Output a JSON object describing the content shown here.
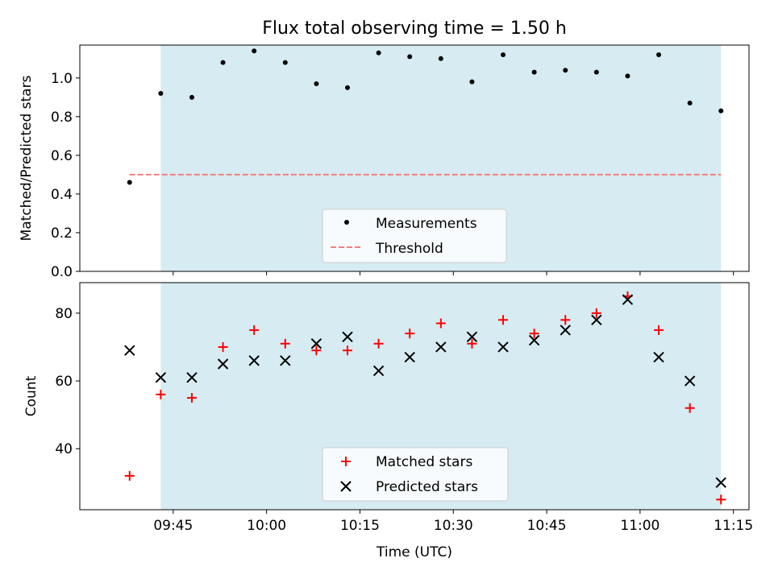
{
  "title": "Flux total observing time = 1.50 h",
  "xlabel": "Time (UTC)",
  "x_tick_labels": [
    "09:45",
    "10:00",
    "10:15",
    "10:30",
    "10:45",
    "11:00",
    "11:15"
  ],
  "chart_data": [
    {
      "type": "scatter",
      "ylabel": "Matched/Predicted stars",
      "ylim": [
        0,
        1.17
      ],
      "y_ticks": [
        "0.0",
        "0.2",
        "0.4",
        "0.6",
        "0.8",
        "1.0"
      ],
      "shaded_region": [
        "09:43",
        "11:13"
      ],
      "x": [
        "09:38",
        "09:43",
        "09:48",
        "09:53",
        "09:58",
        "10:03",
        "10:08",
        "10:13",
        "10:18",
        "10:23",
        "10:28",
        "10:33",
        "10:38",
        "10:43",
        "10:48",
        "10:53",
        "10:58",
        "11:03",
        "11:08",
        "11:13"
      ],
      "series": [
        {
          "name": "Measurements",
          "color": "#000000",
          "values": [
            0.46,
            0.92,
            0.9,
            1.08,
            1.14,
            1.08,
            0.97,
            0.95,
            1.13,
            1.11,
            1.1,
            0.98,
            1.12,
            1.03,
            1.04,
            1.03,
            1.01,
            1.12,
            0.87,
            0.83
          ]
        },
        {
          "name": "Threshold",
          "type": "line",
          "style": "dashed",
          "color": "#f08080",
          "values": [
            0.5,
            0.5,
            0.5,
            0.5,
            0.5,
            0.5,
            0.5,
            0.5,
            0.5,
            0.5,
            0.5,
            0.5,
            0.5,
            0.5,
            0.5,
            0.5,
            0.5,
            0.5,
            0.5,
            0.5
          ]
        }
      ],
      "legend_position": "lower-center"
    },
    {
      "type": "scatter",
      "ylabel": "Count",
      "ylim": [
        22,
        89
      ],
      "y_ticks": [
        "40",
        "60",
        "80"
      ],
      "shaded_region": [
        "09:43",
        "11:13"
      ],
      "x": [
        "09:38",
        "09:43",
        "09:48",
        "09:53",
        "09:58",
        "10:03",
        "10:08",
        "10:13",
        "10:18",
        "10:23",
        "10:28",
        "10:33",
        "10:38",
        "10:43",
        "10:48",
        "10:53",
        "10:58",
        "11:03",
        "11:08",
        "11:13"
      ],
      "series": [
        {
          "name": "Matched stars",
          "marker": "+",
          "color": "#ff0000",
          "values": [
            32,
            56,
            55,
            70,
            75,
            71,
            69,
            69,
            71,
            74,
            77,
            71,
            78,
            74,
            78,
            80,
            85,
            75,
            52,
            25
          ]
        },
        {
          "name": "Predicted stars",
          "marker": "x",
          "color": "#000000",
          "values": [
            69,
            61,
            61,
            65,
            66,
            66,
            71,
            73,
            63,
            67,
            70,
            73,
            70,
            72,
            75,
            78,
            84,
            67,
            60,
            30
          ]
        }
      ],
      "legend_position": "lower-center"
    }
  ]
}
